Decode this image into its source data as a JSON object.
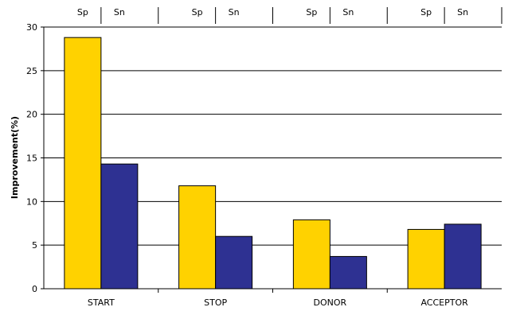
{
  "chart_data": {
    "type": "bar",
    "categories": [
      "START",
      "STOP",
      "DONOR",
      "ACCEPTOR"
    ],
    "series": [
      {
        "name": "Sp",
        "color": "#FFD200",
        "values": [
          28.8,
          11.8,
          7.9,
          6.8
        ]
      },
      {
        "name": "Sn",
        "color": "#2E3192",
        "values": [
          14.3,
          6.0,
          3.7,
          7.4
        ]
      }
    ],
    "title": "",
    "xlabel": "",
    "ylabel": "Improvement(%)",
    "ylim": [
      0,
      30
    ],
    "yticks": [
      "0",
      "5",
      "10",
      "15",
      "20",
      "25",
      "30"
    ],
    "grid": "horizontal",
    "series_labels_position": "top"
  }
}
